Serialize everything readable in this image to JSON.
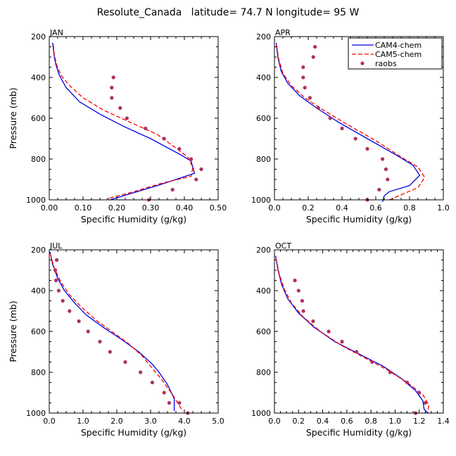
{
  "title": "Resolute_Canada   latitude= 74.7 N longitude= 95 W",
  "colors": {
    "cam4": "#0000dd",
    "cam5": "#ff0000",
    "raobs": "#b03060",
    "axis": "#000000"
  },
  "legend": {
    "placement": "top-right of APR panel",
    "items": [
      "CAM4-chem",
      "CAM5-chem",
      "raobs"
    ]
  },
  "chart_data": [
    {
      "type": "line",
      "label": "JAN",
      "xlabel": "Specific Humidity (g/kg)",
      "ylabel": "Pressure (mb)",
      "xlim": [
        0,
        0.5
      ],
      "ylim": [
        200,
        1000
      ],
      "y_inverted": true,
      "xticks": [
        0,
        0.1,
        0.2,
        0.3,
        0.4,
        0.5
      ],
      "xticklabels": [
        "0.00",
        "0.10",
        "0.20",
        "0.30",
        "0.40",
        "0.50"
      ],
      "yticks": [
        200,
        400,
        600,
        800,
        1000
      ],
      "yticklabels": [
        "200",
        "400",
        "600",
        "800",
        "1000"
      ],
      "series": [
        {
          "name": "CAM4-chem",
          "style": "solid",
          "points": [
            [
              0.01,
              230
            ],
            [
              0.012,
              260
            ],
            [
              0.015,
              300
            ],
            [
              0.02,
              340
            ],
            [
              0.03,
              390
            ],
            [
              0.05,
              450
            ],
            [
              0.09,
              520
            ],
            [
              0.15,
              580
            ],
            [
              0.22,
              640
            ],
            [
              0.3,
              700
            ],
            [
              0.39,
              780
            ],
            [
              0.42,
              810
            ],
            [
              0.43,
              870
            ],
            [
              0.32,
              930
            ],
            [
              0.24,
              970
            ],
            [
              0.18,
              1000
            ]
          ]
        },
        {
          "name": "CAM5-chem",
          "style": "dashed",
          "points": [
            [
              0.012,
              240
            ],
            [
              0.015,
              290
            ],
            [
              0.022,
              340
            ],
            [
              0.035,
              390
            ],
            [
              0.06,
              440
            ],
            [
              0.1,
              500
            ],
            [
              0.16,
              560
            ],
            [
              0.24,
              620
            ],
            [
              0.32,
              680
            ],
            [
              0.37,
              740
            ],
            [
              0.41,
              790
            ],
            [
              0.425,
              840
            ],
            [
              0.42,
              885
            ],
            [
              0.33,
              920
            ],
            [
              0.25,
              960
            ],
            [
              0.17,
              995
            ]
          ]
        },
        {
          "name": "raobs",
          "style": "markers",
          "points": [
            [
              0.19,
              400
            ],
            [
              0.185,
              450
            ],
            [
              0.185,
              500
            ],
            [
              0.21,
              550
            ],
            [
              0.23,
              600
            ],
            [
              0.285,
              650
            ],
            [
              0.34,
              700
            ],
            [
              0.385,
              750
            ],
            [
              0.42,
              800
            ],
            [
              0.45,
              850
            ],
            [
              0.435,
              900
            ],
            [
              0.365,
              950
            ],
            [
              0.295,
              1000
            ]
          ]
        }
      ]
    },
    {
      "type": "line",
      "label": "APR",
      "xlabel": "Specific Humidity (g/kg)",
      "ylabel": "",
      "xlim": [
        0,
        1.0
      ],
      "ylim": [
        200,
        1000
      ],
      "y_inverted": true,
      "xticks": [
        0,
        0.2,
        0.4,
        0.6,
        0.8,
        1.0
      ],
      "xticklabels": [
        "0.0",
        "0.2",
        "0.4",
        "0.6",
        "0.8",
        "1.0"
      ],
      "yticks": [
        200,
        400,
        600,
        800,
        1000
      ],
      "yticklabels": [
        "200",
        "400",
        "600",
        "800",
        "1000"
      ],
      "series": [
        {
          "name": "CAM4-chem",
          "style": "solid",
          "points": [
            [
              0.01,
              230
            ],
            [
              0.02,
              300
            ],
            [
              0.04,
              370
            ],
            [
              0.08,
              430
            ],
            [
              0.15,
              490
            ],
            [
              0.25,
              550
            ],
            [
              0.38,
              620
            ],
            [
              0.55,
              700
            ],
            [
              0.72,
              780
            ],
            [
              0.82,
              830
            ],
            [
              0.86,
              880
            ],
            [
              0.8,
              930
            ],
            [
              0.68,
              960
            ],
            [
              0.65,
              980
            ],
            [
              0.64,
              1010
            ]
          ]
        },
        {
          "name": "CAM5-chem",
          "style": "dashed",
          "points": [
            [
              0.012,
              240
            ],
            [
              0.025,
              310
            ],
            [
              0.05,
              380
            ],
            [
              0.1,
              440
            ],
            [
              0.18,
              500
            ],
            [
              0.29,
              560
            ],
            [
              0.43,
              630
            ],
            [
              0.6,
              710
            ],
            [
              0.75,
              790
            ],
            [
              0.85,
              840
            ],
            [
              0.89,
              890
            ],
            [
              0.85,
              940
            ],
            [
              0.75,
              975
            ],
            [
              0.68,
              1000
            ]
          ]
        },
        {
          "name": "raobs",
          "style": "markers",
          "points": [
            [
              0.24,
              250
            ],
            [
              0.23,
              300
            ],
            [
              0.17,
              350
            ],
            [
              0.17,
              400
            ],
            [
              0.18,
              450
            ],
            [
              0.21,
              500
            ],
            [
              0.26,
              550
            ],
            [
              0.33,
              600
            ],
            [
              0.4,
              650
            ],
            [
              0.48,
              700
            ],
            [
              0.55,
              750
            ],
            [
              0.64,
              800
            ],
            [
              0.66,
              850
            ],
            [
              0.67,
              900
            ],
            [
              0.62,
              950
            ],
            [
              0.55,
              1000
            ]
          ]
        }
      ]
    },
    {
      "type": "line",
      "label": "JUL",
      "xlabel": "Specific Humidity (g/kg)",
      "ylabel": "Pressure (mb)",
      "xlim": [
        0,
        5.0
      ],
      "ylim": [
        200,
        1000
      ],
      "y_inverted": true,
      "xticks": [
        0,
        1,
        2,
        3,
        4,
        5
      ],
      "xticklabels": [
        "0.0",
        "1.0",
        "2.0",
        "3.0",
        "4.0",
        "5.0"
      ],
      "yticks": [
        200,
        400,
        600,
        800,
        1000
      ],
      "yticklabels": [
        "200",
        "400",
        "600",
        "800",
        "1000"
      ],
      "series": [
        {
          "name": "CAM4-chem",
          "style": "solid",
          "points": [
            [
              0.02,
              210
            ],
            [
              0.1,
              270
            ],
            [
              0.25,
              340
            ],
            [
              0.45,
              400
            ],
            [
              0.75,
              460
            ],
            [
              1.1,
              520
            ],
            [
              1.6,
              580
            ],
            [
              2.15,
              640
            ],
            [
              2.65,
              700
            ],
            [
              3.05,
              760
            ],
            [
              3.25,
              800
            ],
            [
              3.5,
              860
            ],
            [
              3.7,
              930
            ],
            [
              3.7,
              990
            ]
          ]
        },
        {
          "name": "CAM5-chem",
          "style": "dashed",
          "points": [
            [
              0.03,
              220
            ],
            [
              0.15,
              290
            ],
            [
              0.35,
              360
            ],
            [
              0.6,
              420
            ],
            [
              0.95,
              480
            ],
            [
              1.35,
              540
            ],
            [
              1.85,
              600
            ],
            [
              2.35,
              660
            ],
            [
              2.75,
              720
            ],
            [
              3.05,
              780
            ],
            [
              3.35,
              840
            ],
            [
              3.65,
              910
            ],
            [
              3.95,
              990
            ]
          ]
        },
        {
          "name": "raobs",
          "style": "markers",
          "points": [
            [
              0.22,
              250
            ],
            [
              0.18,
              300
            ],
            [
              0.2,
              350
            ],
            [
              0.28,
              400
            ],
            [
              0.4,
              450
            ],
            [
              0.6,
              500
            ],
            [
              0.88,
              550
            ],
            [
              1.15,
              600
            ],
            [
              1.5,
              650
            ],
            [
              1.8,
              700
            ],
            [
              2.25,
              750
            ],
            [
              2.7,
              800
            ],
            [
              3.05,
              850
            ],
            [
              3.4,
              900
            ],
            [
              3.55,
              950
            ],
            [
              3.85,
              950
            ],
            [
              4.1,
              1000
            ]
          ]
        }
      ]
    },
    {
      "type": "line",
      "label": "OCT",
      "xlabel": "Specific Humidity (g/kg)",
      "ylabel": "",
      "xlim": [
        0,
        1.4
      ],
      "ylim": [
        200,
        1000
      ],
      "y_inverted": true,
      "xticks": [
        0,
        0.2,
        0.4,
        0.6,
        0.8,
        1.0,
        1.2,
        1.4
      ],
      "xticklabels": [
        "0.0",
        "0.2",
        "0.4",
        "0.6",
        "0.8",
        "1.0",
        "1.2",
        "1.4"
      ],
      "yticks": [
        200,
        400,
        600,
        800,
        1000
      ],
      "yticklabels": [
        "200",
        "400",
        "600",
        "800",
        "1000"
      ],
      "series": [
        {
          "name": "CAM4-chem",
          "style": "solid",
          "points": [
            [
              0.01,
              230
            ],
            [
              0.03,
              300
            ],
            [
              0.06,
              370
            ],
            [
              0.11,
              440
            ],
            [
              0.2,
              510
            ],
            [
              0.33,
              580
            ],
            [
              0.5,
              650
            ],
            [
              0.7,
              710
            ],
            [
              0.9,
              770
            ],
            [
              1.05,
              830
            ],
            [
              1.17,
              890
            ],
            [
              1.23,
              940
            ],
            [
              1.24,
              980
            ],
            [
              1.27,
              1000
            ]
          ]
        },
        {
          "name": "CAM5-chem",
          "style": "dashed",
          "points": [
            [
              0.012,
              240
            ],
            [
              0.04,
              320
            ],
            [
              0.08,
              390
            ],
            [
              0.14,
              460
            ],
            [
              0.24,
              530
            ],
            [
              0.38,
              600
            ],
            [
              0.56,
              670
            ],
            [
              0.75,
              730
            ],
            [
              0.94,
              790
            ],
            [
              1.1,
              850
            ],
            [
              1.23,
              910
            ],
            [
              1.28,
              960
            ],
            [
              1.27,
              1000
            ]
          ]
        },
        {
          "name": "raobs",
          "style": "markers",
          "points": [
            [
              0.17,
              350
            ],
            [
              0.2,
              400
            ],
            [
              0.23,
              450
            ],
            [
              0.24,
              500
            ],
            [
              0.32,
              550
            ],
            [
              0.45,
              600
            ],
            [
              0.56,
              650
            ],
            [
              0.68,
              700
            ],
            [
              0.81,
              750
            ],
            [
              0.96,
              800
            ],
            [
              1.1,
              850
            ],
            [
              1.2,
              900
            ],
            [
              1.25,
              950
            ],
            [
              1.17,
              1000
            ]
          ]
        }
      ]
    }
  ]
}
